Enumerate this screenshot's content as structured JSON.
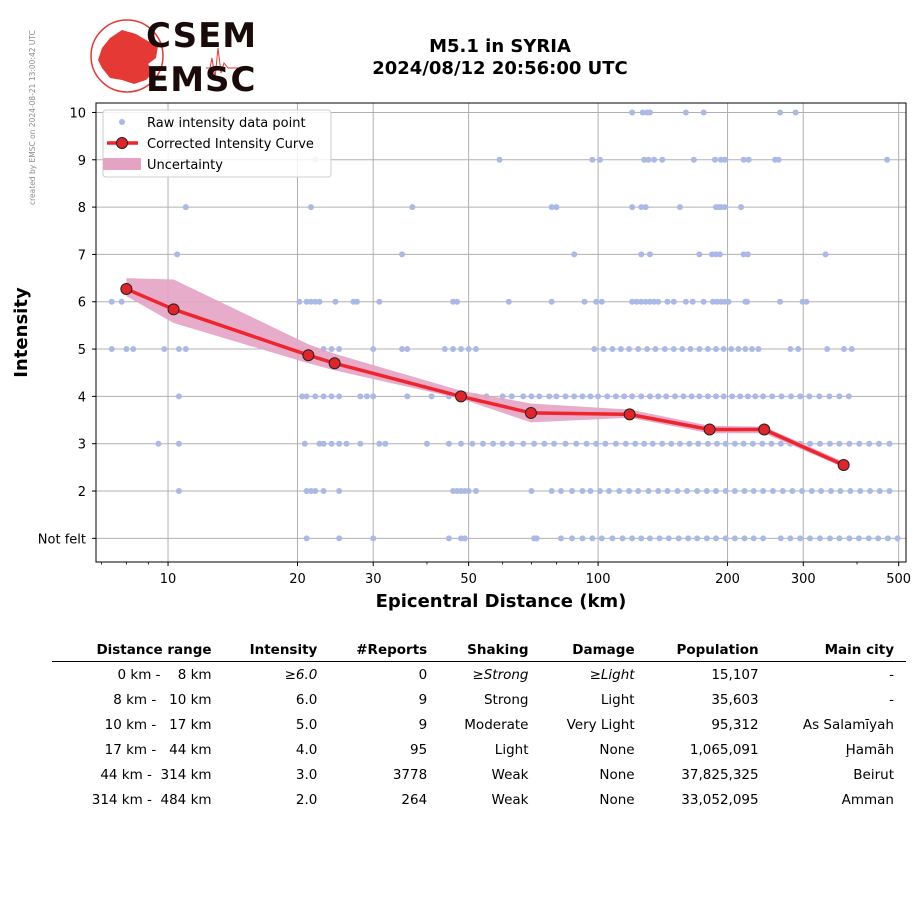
{
  "side_note": "created by EMSC on 2024-08-21 13:00:42 UTC",
  "logo": {
    "line1": "CSEM",
    "line2": "EMSC"
  },
  "title": {
    "line1": "M5.1 in SYRIA",
    "line2": "2024/08/12 20:56:00 UTC"
  },
  "colors": {
    "raw": "#aab9e6",
    "curve": "#f0242c",
    "marker": "#e0242a",
    "band": "#e3a3c3"
  },
  "chart_data": {
    "type": "scatter",
    "xlabel": "Epicentral Distance (km)",
    "ylabel": "Intensity",
    "xscale": "log",
    "xlim": [
      6.8,
      520
    ],
    "ylim": [
      0.5,
      10.2
    ],
    "xticks": [
      10,
      20,
      30,
      50,
      100,
      200,
      300,
      500
    ],
    "yticks": [
      1,
      2,
      3,
      4,
      5,
      6,
      7,
      8,
      9,
      10
    ],
    "ytick_labels": [
      "Not felt",
      "2",
      "3",
      "4",
      "5",
      "6",
      "7",
      "8",
      "9",
      "10"
    ],
    "grid": true,
    "legend": {
      "position": "top-left",
      "entries": [
        "Raw intensity data point",
        "Corrected Intensity Curve",
        "Uncertainty"
      ]
    },
    "curve": {
      "name": "Corrected Intensity Curve",
      "x": [
        8.0,
        10.3,
        21.2,
        24.4,
        48.0,
        69.8,
        118.4,
        181.7,
        243.4,
        372.4
      ],
      "y": [
        6.27,
        5.84,
        4.87,
        4.7,
        4.0,
        3.65,
        3.62,
        3.3,
        3.3,
        2.55
      ]
    },
    "uncertainty": {
      "name": "Uncertainty",
      "x": [
        8.0,
        10.3,
        21.2,
        24.4,
        48.0,
        69.8,
        118.4,
        181.7,
        243.4,
        372.4
      ],
      "lower": [
        6.12,
        5.55,
        4.7,
        4.55,
        3.95,
        3.45,
        3.55,
        3.22,
        3.22,
        2.5
      ],
      "upper": [
        6.5,
        6.47,
        5.1,
        4.9,
        4.12,
        3.85,
        3.72,
        3.38,
        3.36,
        2.62
      ]
    },
    "raw_points": [
      {
        "y": 10,
        "x": [
          120,
          127,
          130,
          132,
          160,
          176,
          265,
          288
        ]
      },
      {
        "y": 9,
        "x": [
          22,
          59,
          97,
          101,
          128,
          131,
          135,
          141,
          167,
          187,
          193,
          197,
          218,
          224,
          258,
          263,
          470
        ]
      },
      {
        "y": 8,
        "x": [
          11,
          21.5,
          37,
          78,
          80,
          120,
          126,
          129,
          155,
          188,
          191,
          193,
          197,
          215
        ]
      },
      {
        "y": 7,
        "x": [
          10.5,
          35,
          88,
          126,
          132,
          172,
          184,
          188,
          192,
          218,
          223,
          338
        ]
      },
      {
        "y": 6,
        "x": [
          7.4,
          7.8,
          20.2,
          21,
          21.5,
          22,
          22.5,
          24.5,
          27,
          27.5,
          31,
          46,
          47,
          62,
          78,
          93,
          99,
          102,
          120,
          123,
          126,
          129,
          132,
          135,
          138,
          145,
          150,
          160,
          166,
          176,
          185,
          189,
          193,
          197,
          201,
          220,
          222,
          265,
          299,
          305
        ]
      },
      {
        "y": 5,
        "x": [
          7.4,
          8,
          8.3,
          9.8,
          10.6,
          11,
          23,
          24,
          25,
          30,
          35,
          36,
          44,
          46,
          48,
          50,
          52,
          98,
          103,
          108,
          113,
          118,
          124,
          130,
          136,
          143,
          150,
          157,
          164,
          172,
          180,
          188,
          196,
          204,
          212,
          220,
          228,
          236,
          280,
          292,
          341,
          373,
          389
        ]
      },
      {
        "y": 4,
        "x": [
          10.6,
          20.5,
          21,
          22,
          23,
          24,
          25,
          28,
          29,
          30,
          36,
          41,
          45,
          48,
          52,
          55,
          60,
          63,
          67,
          70,
          73,
          77,
          80,
          84,
          88,
          92,
          96,
          100,
          105,
          110,
          115,
          120,
          126,
          132,
          138,
          144,
          151,
          158,
          165,
          172,
          180,
          188,
          196,
          205,
          214,
          223,
          232,
          242,
          254,
          267,
          281,
          295,
          310,
          327,
          345,
          364,
          383
        ]
      },
      {
        "y": 3,
        "x": [
          9.5,
          10.6,
          20.8,
          22.5,
          23,
          24,
          25,
          26,
          28,
          31,
          32,
          40,
          45,
          48,
          51,
          54,
          57,
          60,
          63,
          67,
          71,
          75,
          79,
          84,
          89,
          94,
          99,
          104,
          110,
          116,
          122,
          128,
          134,
          141,
          148,
          155,
          163,
          171,
          180,
          189,
          198,
          208,
          218,
          229,
          241,
          253,
          266,
          280,
          295,
          311,
          328,
          346,
          364,
          384,
          405,
          427,
          450,
          476
        ]
      },
      {
        "y": 2,
        "x": [
          10.6,
          21,
          21.5,
          22,
          23,
          25,
          46,
          47,
          48,
          49,
          50,
          52,
          70,
          78,
          82,
          87,
          92,
          96,
          101,
          106,
          112,
          118,
          124,
          131,
          138,
          145,
          153,
          161,
          170,
          179,
          188,
          198,
          208,
          219,
          230,
          242,
          255,
          269,
          283,
          298,
          314,
          330,
          348,
          366,
          386,
          407,
          429,
          452,
          476
        ]
      },
      {
        "y": 1,
        "x": [
          21,
          25,
          30,
          45,
          48,
          49,
          71,
          72,
          82,
          87,
          92,
          97,
          102,
          108,
          114,
          120,
          126,
          132,
          139,
          146,
          154,
          162,
          170,
          179,
          188,
          198,
          208,
          219,
          230,
          242,
          266,
          280,
          295,
          311,
          328,
          346,
          364,
          384,
          404,
          426,
          448,
          472,
          497
        ]
      }
    ]
  },
  "table": {
    "headers": [
      "Distance range",
      "Intensity",
      "#Reports",
      "Shaking",
      "Damage",
      "Population",
      "Main city"
    ],
    "rows": [
      {
        "range": "0 km -    8 km",
        "intensity": "≥6.0",
        "reports": "0",
        "shaking": "≥Strong",
        "damage": "≥Light",
        "population": "15,107",
        "city": "-"
      },
      {
        "range": "8 km -   10 km",
        "intensity": "6.0",
        "reports": "9",
        "shaking": "Strong",
        "damage": "Light",
        "population": "35,603",
        "city": "-"
      },
      {
        "range": "10 km -   17 km",
        "intensity": "5.0",
        "reports": "9",
        "shaking": "Moderate",
        "damage": "Very Light",
        "population": "95,312",
        "city": "As Salamīyah"
      },
      {
        "range": "17 km -   44 km",
        "intensity": "4.0",
        "reports": "95",
        "shaking": "Light",
        "damage": "None",
        "population": "1,065,091",
        "city": "Ḩamāh"
      },
      {
        "range": "44 km -  314 km",
        "intensity": "3.0",
        "reports": "3778",
        "shaking": "Weak",
        "damage": "None",
        "population": "37,825,325",
        "city": "Beirut"
      },
      {
        "range": "314 km -  484 km",
        "intensity": "2.0",
        "reports": "264",
        "shaking": "Weak",
        "damage": "None",
        "population": "33,052,095",
        "city": "Amman"
      }
    ]
  }
}
